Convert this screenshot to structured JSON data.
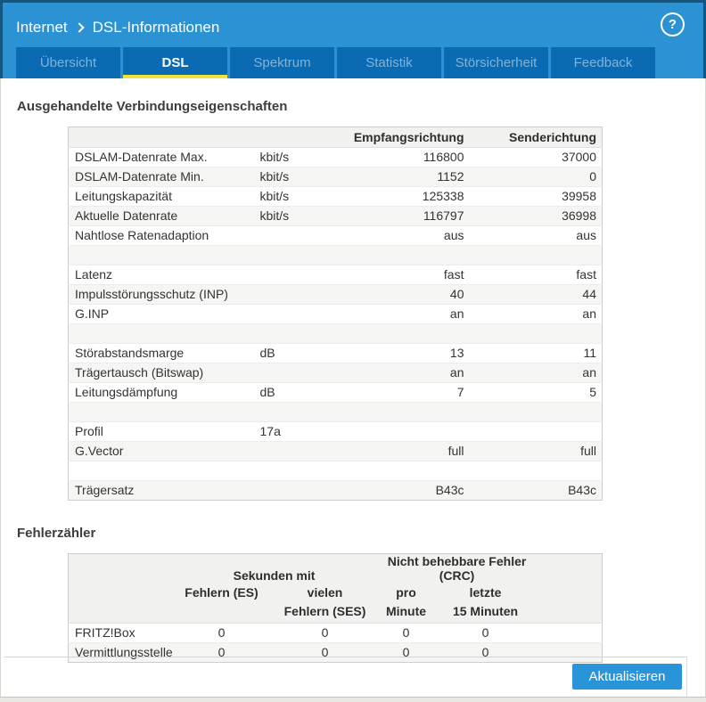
{
  "header": {
    "breadcrumb": {
      "section": "Internet",
      "page": "DSL-Informationen"
    },
    "help_icon": "?"
  },
  "tabs": [
    {
      "label": "Übersicht",
      "active": false
    },
    {
      "label": "DSL",
      "active": true
    },
    {
      "label": "Spektrum",
      "active": false
    },
    {
      "label": "Statistik",
      "active": false
    },
    {
      "label": "Störsicherheit",
      "active": false
    },
    {
      "label": "Feedback",
      "active": false
    }
  ],
  "connection_section": {
    "title": "Ausgehandelte Verbindungseigenschaften",
    "columns": [
      "Empfangsrichtung",
      "Senderichtung"
    ],
    "rows": [
      {
        "label": "DSLAM-Datenrate Max.",
        "unit": "kbit/s",
        "rx": "116800",
        "tx": "37000"
      },
      {
        "label": "DSLAM-Datenrate Min.",
        "unit": "kbit/s",
        "rx": "1152",
        "tx": "0"
      },
      {
        "label": "Leitungskapazität",
        "unit": "kbit/s",
        "rx": "125338",
        "tx": "39958"
      },
      {
        "label": "Aktuelle Datenrate",
        "unit": "kbit/s",
        "rx": "116797",
        "tx": "36998"
      },
      {
        "label": "Nahtlose Ratenadaption",
        "unit": "",
        "rx": "aus",
        "tx": "aus"
      },
      {
        "label": "",
        "unit": "",
        "rx": "",
        "tx": ""
      },
      {
        "label": "Latenz",
        "unit": "",
        "rx": "fast",
        "tx": "fast"
      },
      {
        "label": "Impulsstörungsschutz (INP)",
        "unit": "",
        "rx": "40",
        "tx": "44"
      },
      {
        "label": "G.INP",
        "unit": "",
        "rx": "an",
        "tx": "an"
      },
      {
        "label": "",
        "unit": "",
        "rx": "",
        "tx": ""
      },
      {
        "label": "Störabstandsmarge",
        "unit": "dB",
        "rx": "13",
        "tx": "11"
      },
      {
        "label": "Trägertausch (Bitswap)",
        "unit": "",
        "rx": "an",
        "tx": "an"
      },
      {
        "label": "Leitungsdämpfung",
        "unit": "dB",
        "rx": "7",
        "tx": "5"
      },
      {
        "label": "",
        "unit": "",
        "rx": "",
        "tx": ""
      },
      {
        "label": "Profil",
        "unit": "17a",
        "rx": "",
        "tx": ""
      },
      {
        "label": "G.Vector",
        "unit": "",
        "rx": "full",
        "tx": "full"
      },
      {
        "label": "",
        "unit": "",
        "rx": "",
        "tx": ""
      },
      {
        "label": "Trägersatz",
        "unit": "",
        "rx": "B43c",
        "tx": "B43c"
      }
    ]
  },
  "error_section": {
    "title": "Fehlerzähler",
    "group_headers": [
      "Sekunden mit",
      "Nicht behebbare Fehler (CRC)"
    ],
    "sub_headers": [
      "Fehlern (ES)",
      "vielen\nFehlern (SES)",
      "pro\nMinute",
      "letzte\n15 Minuten"
    ],
    "rows": [
      {
        "label": "FRITZ!Box",
        "values": [
          "0",
          "0",
          "0",
          "0"
        ]
      },
      {
        "label": "Vermittlungsstelle",
        "values": [
          "0",
          "0",
          "0",
          "0"
        ]
      }
    ]
  },
  "footer": {
    "refresh_button": "Aktualisieren"
  },
  "colors": {
    "header_blue": "#2b92d4",
    "header_border_blue": "#14567f",
    "tab_blue": "#0a6ab2",
    "tab_inactive_text": "#7fb3d9",
    "active_tab_underline": "#e9e53c",
    "button_blue": "#2a94d8",
    "zebra_row": "#f5f5f3",
    "table_header_bg": "#f1f1ef",
    "page_background": "#eae8e2"
  }
}
